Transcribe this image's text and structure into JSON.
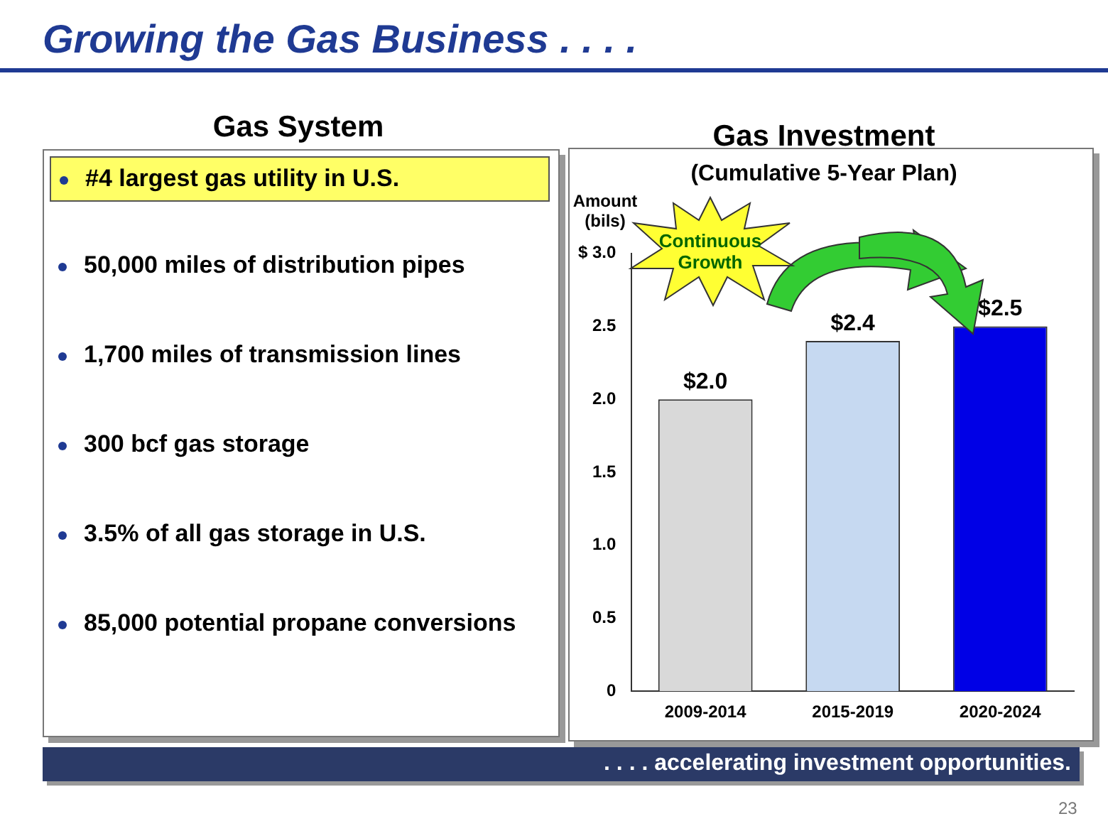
{
  "chart_data": [
    {
      "type": "other",
      "title": "Growing the Gas Business . . . .",
      "subtitle": "Gas System",
      "annotations": [
        "#4 largest gas utility in U.S.",
        "50,000 miles of distribution pipes",
        "1,700 miles of transmission lines",
        "300 bcf gas storage",
        "3.5% of all gas storage in U.S.",
        "85,000 potential propane conversions"
      ]
    },
    {
      "type": "bar",
      "title": "Gas Investment",
      "subtitle": "(Cumulative 5-Year Plan)",
      "ylabel": "Amount (bils)",
      "categories": [
        "2009-2014",
        "2015-2019",
        "2020-2024"
      ],
      "values": [
        2.0,
        2.4,
        2.5
      ],
      "colors": [
        "#d9d9d9",
        "#c6d9f1",
        "#0000e6"
      ],
      "value_labels": [
        "$2.0",
        "$2.4",
        "$2.5"
      ],
      "ylim": [
        0,
        3
      ],
      "yticks": [
        0,
        0.5,
        {
          "value": 1,
          "label": "1.0"
        },
        1.5,
        {
          "value": 2,
          "label": "2.0"
        },
        2.5,
        {
          "value": 3,
          "label": "$ 3.0"
        }
      ],
      "grid": false,
      "legend": false,
      "annotations": [
        "Continuous Growth",
        ". . . . accelerating investment opportunities.",
        "23"
      ]
    }
  ]
}
